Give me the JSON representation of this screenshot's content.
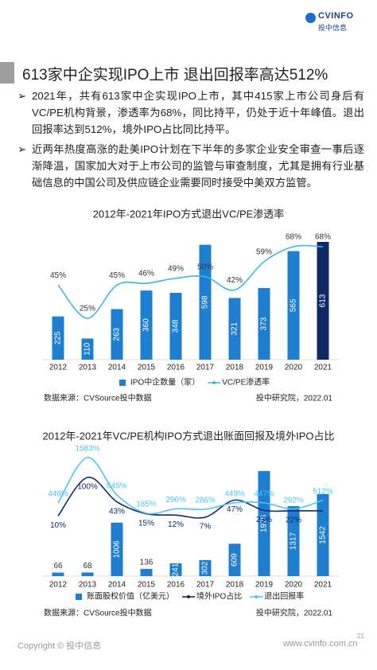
{
  "header": {
    "logo_brand": "CVINFO",
    "logo_sub": "投中信息"
  },
  "section_title": "613家中企实现IPO上市 退出回报率高达512%",
  "bullets": [
    {
      "mark": "➢",
      "text": "2021年，共有613家中企实现IPO上市，其中415家上市公司身后有VC/PE机构背景，渗透率为68%，同比持平，仍处于近十年峰值。退出回报率达到512%，境外IPO占比同比持平。"
    },
    {
      "mark": "➢",
      "text": "近两年热度高涨的赴美IPO计划在下半年的多家企业安全审查一事后逐渐降温，国家加大对于上市公司的监管与审查制度，尤其是拥有行业基础信息的中国公司及供应链企业需要同时接受中美双方监管。"
    }
  ],
  "chart_data": [
    {
      "type": "combo",
      "title": "2012年-2021年IPO方式退出VC/PE渗透率",
      "categories": [
        "2012",
        "2013",
        "2014",
        "2015",
        "2016",
        "2017",
        "2018",
        "2019",
        "2020",
        "2021"
      ],
      "series": [
        {
          "name": "IPO中企数量（家）",
          "type": "bar",
          "colors": [
            "#1e7fd0",
            "#1e7fd0",
            "#1e7fd0",
            "#1e7fd0",
            "#1e7fd0",
            "#1e7fd0",
            "#1e7fd0",
            "#1e7fd0",
            "#1e7fd0",
            "#0d2a66"
          ],
          "values": [
            225,
            110,
            263,
            360,
            348,
            598,
            321,
            373,
            565,
            613
          ]
        },
        {
          "name": "VC/PE渗透率",
          "type": "line",
          "color": "#3cb6ec",
          "values": [
            45,
            25,
            45,
            46,
            49,
            50,
            42,
            59,
            68,
            68
          ],
          "value_labels": [
            "45%",
            "25%",
            "45%",
            "46%",
            "49%",
            "50%",
            "42%",
            "59%",
            "68%",
            "68%"
          ]
        }
      ],
      "source": "数据来源：CVSource投中数据",
      "credit": "投中研究院，2022.01"
    },
    {
      "type": "combo",
      "title": "2012年-2021年VC/PE机构IPO方式退出账面回报及境外IPO占比",
      "categories": [
        "2012",
        "2013",
        "2014",
        "2015",
        "2016",
        "2017",
        "2018",
        "2019",
        "2020",
        "2021"
      ],
      "series": [
        {
          "name": "账面股权价值（亿美元）",
          "type": "bar",
          "colors": [
            "#1e7fd0",
            "#1e7fd0",
            "#1e7fd0",
            "#1e7fd0",
            "#1e7fd0",
            "#1e7fd0",
            "#1e7fd0",
            "#1e7fd0",
            "#1e7fd0",
            "#1e7fd0"
          ],
          "values": [
            66,
            68,
            1006,
            136,
            241,
            302,
            609,
            1976,
            1317,
            1542
          ]
        },
        {
          "name": "境外IPO占比",
          "type": "line",
          "color": "#0b2a6b",
          "values": [
            10,
            100,
            43,
            15,
            12,
            7,
            47,
            23,
            22,
            22
          ],
          "value_labels": [
            "10%",
            "100%",
            "43%",
            "15%",
            "12%",
            "7%",
            "47%",
            "23%",
            "22%",
            null
          ]
        },
        {
          "name": "退出回报率",
          "type": "line",
          "color": "#4fc3f7",
          "values": [
            448,
            1583,
            645,
            185,
            296,
            286,
            449,
            447,
            292,
            512
          ],
          "value_labels": [
            "448%",
            "1583%",
            "645%",
            "185%",
            "296%",
            "286%",
            "449%",
            "447%",
            "292%",
            "512%"
          ]
        }
      ],
      "source": "数据来源：CVSource投中数据",
      "credit": "投中研究院，2022.01"
    }
  ],
  "footer": {
    "copyright": "Copyright © 投中信息",
    "site": "www.cvinfo.com.cn",
    "page": "21"
  }
}
